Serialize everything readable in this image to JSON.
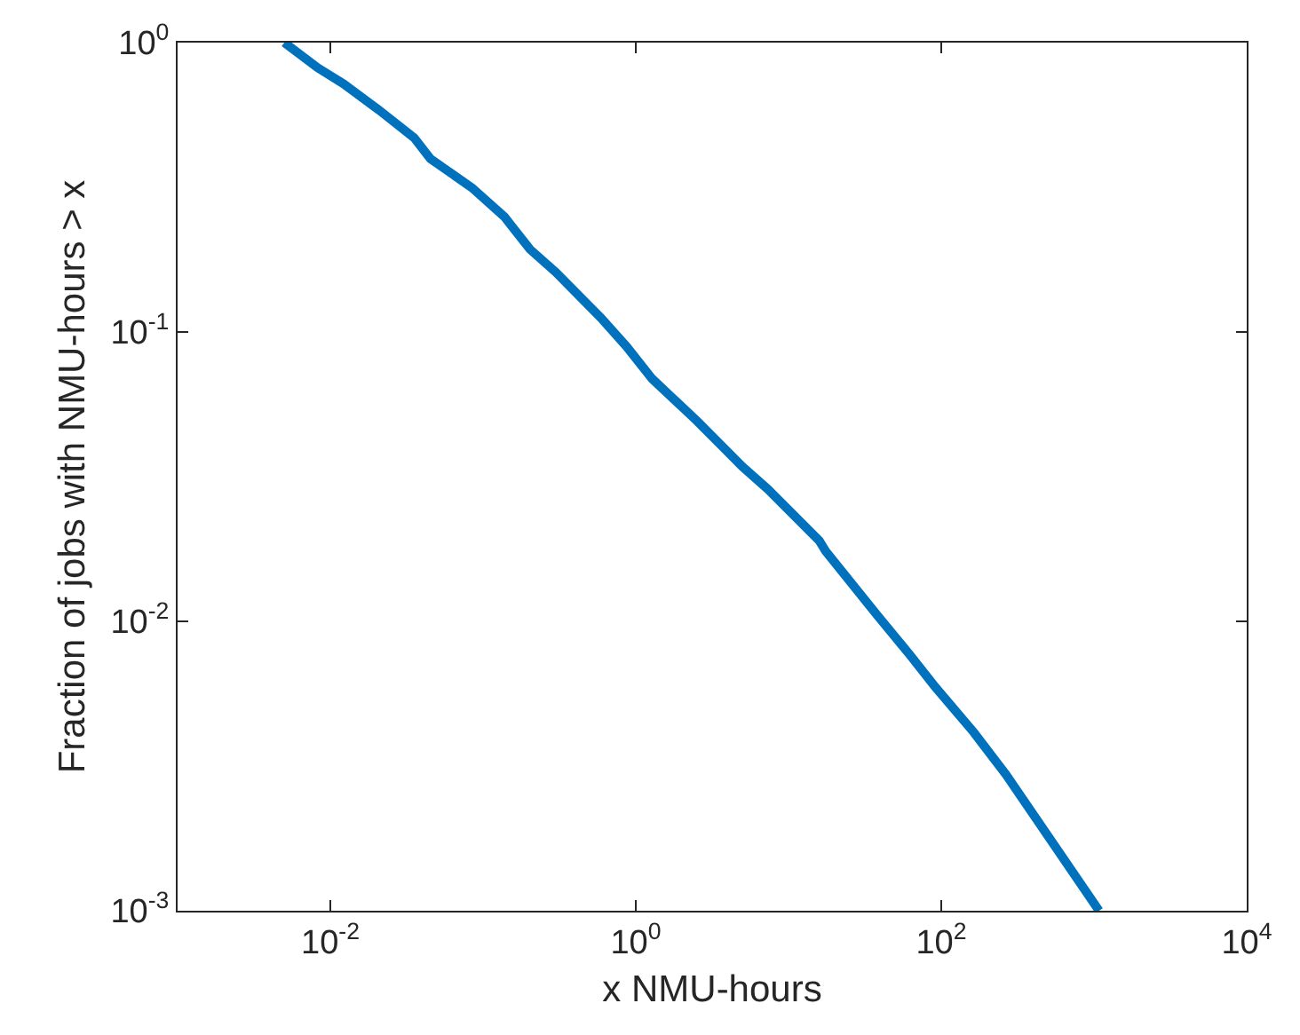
{
  "chart_data": {
    "type": "line",
    "xlabel": "x NMU-hours",
    "ylabel": "Fraction of jobs with NMU-hours > x",
    "log": "xy",
    "grid": false,
    "marker": "none",
    "line_style": "solid",
    "xlim": [
      0.001,
      10000
    ],
    "ylim": [
      0.001,
      1
    ],
    "xticks": [
      {
        "value": 0.01,
        "label": "10$^{-2}$"
      },
      {
        "value": 1,
        "label": "10$^{0}$"
      },
      {
        "value": 100,
        "label": "10$^{2}$"
      },
      {
        "value": 10000,
        "label": "10$^{4}$"
      }
    ],
    "yticks": [
      {
        "value": 0.001,
        "label": "10$^{-3}$"
      },
      {
        "value": 0.01,
        "label": "10$^{-2}$"
      },
      {
        "value": 0.1,
        "label": "10$^{-1}$"
      },
      {
        "value": 1,
        "label": "10$^{0}$"
      }
    ],
    "series": [
      {
        "color": "#0072bd",
        "x": [
          0.005,
          0.00828,
          0.0122,
          0.0208,
          0.0354,
          0.0452,
          0.0847,
          0.138,
          0.203,
          0.299,
          0.59,
          0.869,
          1.28,
          2.52,
          4.98,
          7.33,
          15.9,
          17.5,
          38.1,
          61.9,
          91.2,
          163,
          265,
          1080
        ],
        "values": [
          1.0,
          0.818,
          0.72,
          0.585,
          0.469,
          0.397,
          0.315,
          0.25,
          0.193,
          0.161,
          0.112,
          0.0891,
          0.0689,
          0.0492,
          0.0343,
          0.0286,
          0.019,
          0.0175,
          0.0105,
          0.00769,
          0.00594,
          0.00414,
          0.00296,
          0.001
        ]
      }
    ]
  }
}
